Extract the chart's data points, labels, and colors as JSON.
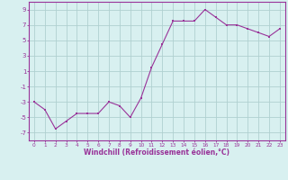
{
  "x": [
    0,
    1,
    2,
    3,
    4,
    5,
    6,
    7,
    8,
    9,
    10,
    11,
    12,
    13,
    14,
    15,
    16,
    17,
    18,
    19,
    20,
    21,
    22,
    23
  ],
  "y": [
    -3,
    -4,
    -6.5,
    -5.5,
    -4.5,
    -4.5,
    -4.5,
    -3,
    -3.5,
    -5,
    -2.5,
    1.5,
    4.5,
    7.5,
    7.5,
    7.5,
    9,
    8,
    7,
    7,
    6.5,
    6,
    5.5,
    6.5
  ],
  "line_color": "#993399",
  "marker_color": "#993399",
  "bg_color": "#d8f0f0",
  "grid_color": "#b0d0d0",
  "xlabel": "Windchill (Refroidissement éolien,°C)",
  "xlabel_color": "#993399",
  "tick_color": "#993399",
  "ylim": [
    -8,
    10
  ],
  "xlim": [
    -0.5,
    23.5
  ],
  "yticks": [
    -7,
    -5,
    -3,
    -1,
    1,
    3,
    5,
    7,
    9
  ],
  "xticks": [
    0,
    1,
    2,
    3,
    4,
    5,
    6,
    7,
    8,
    9,
    10,
    11,
    12,
    13,
    14,
    15,
    16,
    17,
    18,
    19,
    20,
    21,
    22,
    23
  ]
}
